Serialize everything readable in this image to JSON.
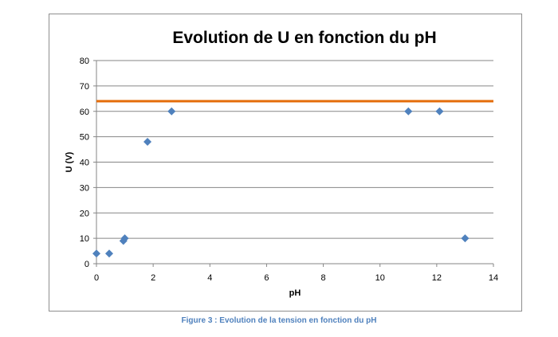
{
  "caption": "Figure 3 : Evolution de la tension en fonction du pH",
  "chart_data": {
    "type": "scatter",
    "title": "Evolution de U en fonction du pH",
    "xlabel": "pH",
    "ylabel": "U (V)",
    "xlim": [
      0,
      14
    ],
    "ylim": [
      0,
      80
    ],
    "x_ticks": [
      0,
      2,
      4,
      6,
      8,
      10,
      12,
      14
    ],
    "y_ticks": [
      0,
      10,
      20,
      30,
      40,
      50,
      60,
      70,
      80
    ],
    "grid": "horizontal",
    "legend": "none",
    "series": [
      {
        "color": "#4f81bd",
        "marker": "diamond",
        "points": [
          {
            "x": 0,
            "y": 4
          },
          {
            "x": 0.45,
            "y": 4
          },
          {
            "x": 0.95,
            "y": 9
          },
          {
            "x": 1.0,
            "y": 10
          },
          {
            "x": 1.8,
            "y": 48
          },
          {
            "x": 2.65,
            "y": 60
          },
          {
            "x": 11,
            "y": 60
          },
          {
            "x": 12.1,
            "y": 60
          },
          {
            "x": 13,
            "y": 10
          }
        ]
      }
    ],
    "reference_lines": [
      {
        "y": 64,
        "color": "#e46c0a"
      }
    ],
    "colors": {
      "axis": "#868686",
      "grid": "#868686"
    }
  }
}
